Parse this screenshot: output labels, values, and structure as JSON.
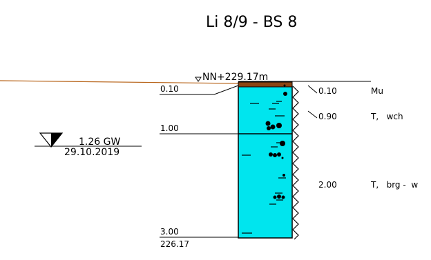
{
  "title": "Li 8/9 - BS 8",
  "ground_elevation": "NN+229.17m",
  "groundwater": {
    "depth_label": "1.26 GW",
    "date": "29.10.2019"
  },
  "layer_boundaries_left": [
    "0.10",
    "1.00",
    "3.00"
  ],
  "bottom_elevation": "226.17",
  "layers": [
    {
      "depth": "0.10",
      "description": "Mu"
    },
    {
      "depth": "0.90",
      "description": "T,   wch"
    },
    {
      "depth": "2.00",
      "description": "T,   brg -  w"
    }
  ],
  "colors": {
    "topsoil": "#8B4513",
    "clay": "#00E5EE",
    "terrain_line": "#B8651B"
  }
}
